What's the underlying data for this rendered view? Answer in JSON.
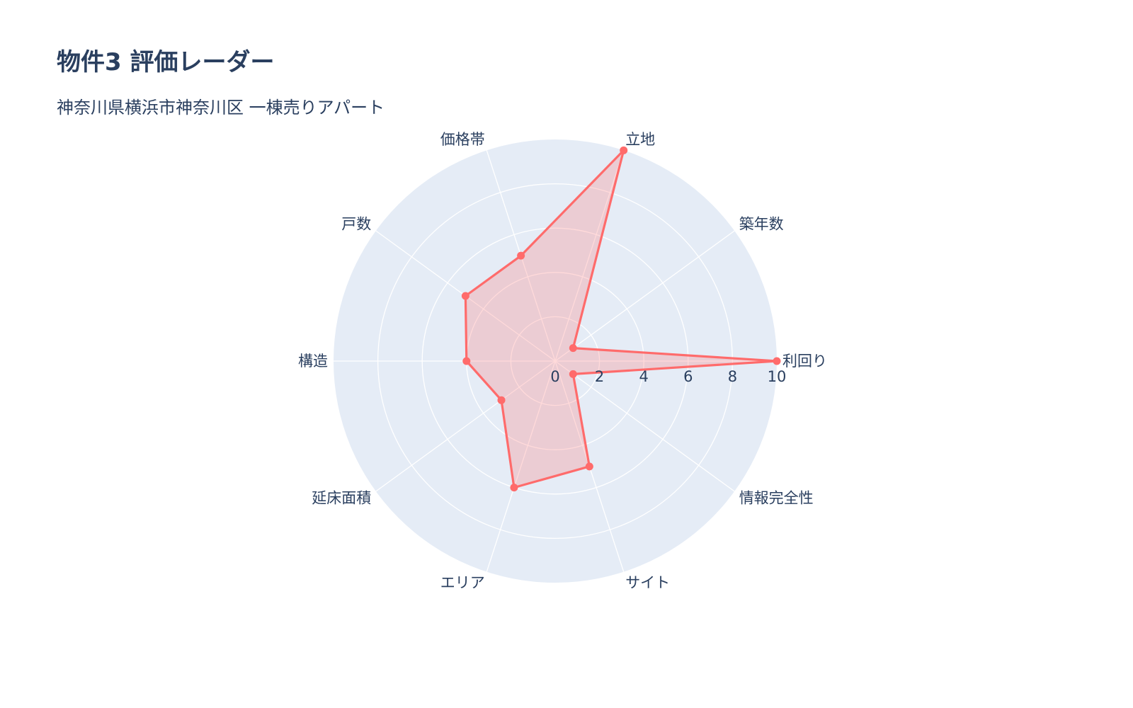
{
  "chart_data": {
    "type": "radar",
    "title": "物件3 評価レーダー",
    "subtitle": "神奈川県横浜市神奈川区 一棟売りアパート",
    "categories": [
      "利回り",
      "築年数",
      "立地",
      "価格帯",
      "戸数",
      "構造",
      "延床面積",
      "エリア",
      "サイト",
      "情報完全性"
    ],
    "values": [
      10,
      1,
      10,
      5,
      5,
      4,
      3,
      6,
      5,
      1
    ],
    "radial_range": [
      0,
      10
    ],
    "radial_ticks": [
      "0",
      "2",
      "4",
      "6",
      "8",
      "10"
    ],
    "grid": true,
    "legend": "none",
    "colors": {
      "line": "#ff6b6b",
      "fill": "rgba(255,107,107,0.25)",
      "polar_bg": "#e5ecf6",
      "grid": "#ffffff",
      "text": "#2a3f5f"
    }
  }
}
